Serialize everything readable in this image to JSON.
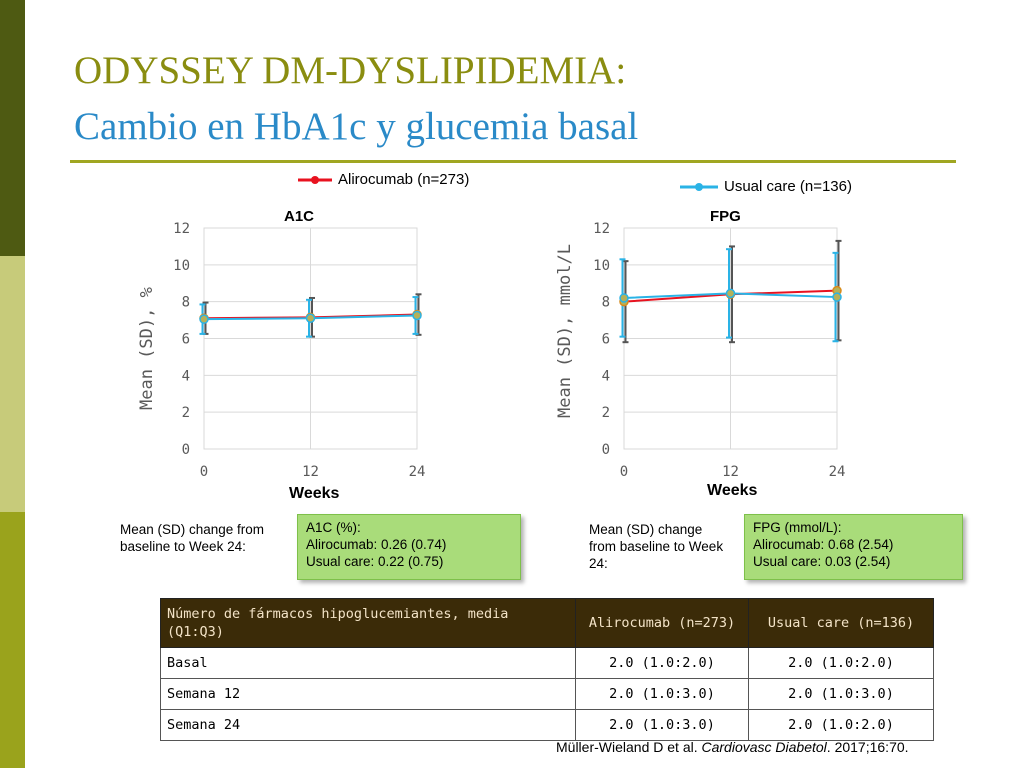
{
  "title": {
    "line1": "ODYSSEY DM-DYSLIPIDEMIA:",
    "line2": "Cambio en HbA1c y glucemia basal"
  },
  "legend": {
    "alirocumab": "Alirocumab (n=273)",
    "usual_care": "Usual care (n=136)"
  },
  "colors": {
    "alirocumab": "#e8121f",
    "usual_care": "#2ab3e6",
    "marker_fill": "#b5b15a",
    "marker_edge": "#d98b1a",
    "error_bar": "#555555"
  },
  "chart_data": [
    {
      "type": "line",
      "title": "A1C",
      "xlabel": "Weeks",
      "ylabel": "Mean (SD), %",
      "x": [
        0,
        12,
        24
      ],
      "xticks": [
        "0",
        "12",
        "24"
      ],
      "ylim": [
        0,
        12
      ],
      "yticks": [
        "0",
        "2",
        "4",
        "6",
        "8",
        "10",
        "12"
      ],
      "grid": true,
      "series": [
        {
          "name": "Alirocumab (n=273)",
          "values": [
            7.1,
            7.15,
            7.3
          ],
          "sd": [
            0.85,
            1.05,
            1.1
          ]
        },
        {
          "name": "Usual care (n=136)",
          "values": [
            7.05,
            7.1,
            7.25
          ],
          "sd": [
            0.8,
            1.0,
            1.0
          ]
        }
      ]
    },
    {
      "type": "line",
      "title": "FPG",
      "xlabel": "Weeks",
      "ylabel": "Mean (SD), mmol/L",
      "x": [
        0,
        12,
        24
      ],
      "xticks": [
        "0",
        "12",
        "24"
      ],
      "ylim": [
        0,
        12
      ],
      "yticks": [
        "0",
        "2",
        "4",
        "6",
        "8",
        "10",
        "12"
      ],
      "grid": true,
      "series": [
        {
          "name": "Alirocumab (n=273)",
          "values": [
            8.0,
            8.4,
            8.6
          ],
          "sd": [
            2.2,
            2.6,
            2.7
          ]
        },
        {
          "name": "Usual care (n=136)",
          "values": [
            8.2,
            8.45,
            8.25
          ],
          "sd": [
            2.1,
            2.4,
            2.4
          ]
        }
      ]
    }
  ],
  "notes": {
    "a1c_label": "Mean (SD) change from baseline to Week 24:",
    "a1c_box": [
      "A1C (%):",
      "Alirocumab: 0.26 (0.74)",
      "Usual care: 0.22 (0.75)"
    ],
    "fpg_label": "Mean (SD) change from baseline to Week 24:",
    "fpg_box": [
      "FPG (mmol/L):",
      "Alirocumab: 0.68 (2.54)",
      "Usual care: 0.03 (2.54)"
    ]
  },
  "table": {
    "headers": [
      "Número de fármacos hipoglucemiantes, media (Q1:Q3)",
      "Alirocumab (n=273)",
      "Usual care (n=136)"
    ],
    "rows": [
      [
        "Basal",
        "2.0 (1.0:2.0)",
        "2.0 (1.0:2.0)"
      ],
      [
        "Semana 12",
        "2.0 (1.0:3.0)",
        "2.0 (1.0:3.0)"
      ],
      [
        "Semana 24",
        "2.0 (1.0:3.0)",
        "2.0 (1.0:2.0)"
      ]
    ]
  },
  "citation": {
    "authors": "Müller-Wieland D et al. ",
    "journal": "Cardiovasc Diabetol",
    "rest": ". 2017;16:70."
  }
}
